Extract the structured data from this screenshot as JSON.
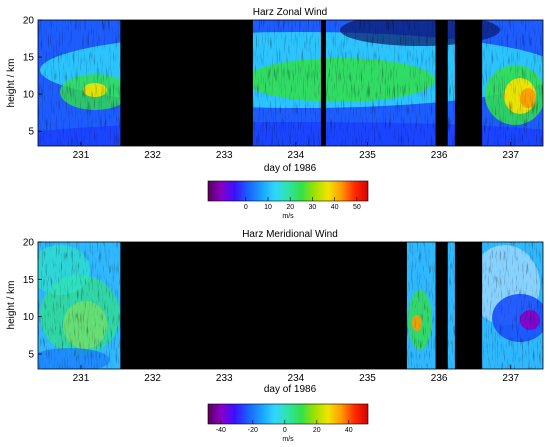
{
  "chart_data": [
    {
      "type": "heatmap",
      "title": "Harz Zonal Wind",
      "xlabel": "day of 1986",
      "ylabel": "height / km",
      "x_ticks": [
        "231",
        "232",
        "233",
        "234",
        "235",
        "236",
        "237"
      ],
      "y_ticks": [
        "5",
        "10",
        "15",
        "20"
      ],
      "xlim": [
        230.4,
        237.45
      ],
      "ylim": [
        3,
        20
      ],
      "no_data_intervals": [
        [
          231.55,
          233.4
        ],
        [
          234.35,
          234.42
        ],
        [
          235.95,
          236.12
        ],
        [
          236.22,
          236.6
        ]
      ],
      "colorbar": {
        "unit": "m/s",
        "range": [
          -17,
          55
        ],
        "ticks": [
          "0",
          "10",
          "20",
          "30",
          "40",
          "50"
        ],
        "tick_values": [
          0,
          10,
          20,
          30,
          40,
          50
        ]
      }
    },
    {
      "type": "heatmap",
      "title": "Harz Meridional Wind",
      "xlabel": "day of 1986",
      "ylabel": "height / km",
      "x_ticks": [
        "231",
        "232",
        "233",
        "234",
        "235",
        "236",
        "237"
      ],
      "y_ticks": [
        "5",
        "10",
        "15",
        "20"
      ],
      "xlim": [
        230.4,
        237.45
      ],
      "ylim": [
        3,
        20
      ],
      "no_data_intervals": [
        [
          231.55,
          235.55
        ],
        [
          235.95,
          236.12
        ],
        [
          236.22,
          236.6
        ]
      ],
      "colorbar": {
        "unit": "m/s",
        "range": [
          -48,
          52
        ],
        "ticks": [
          "-40",
          "-20",
          "0",
          "20",
          "40"
        ],
        "tick_values": [
          -40,
          -20,
          0,
          20,
          40
        ]
      }
    }
  ],
  "colors": {
    "no_data": "#000000",
    "colormap": [
      "#5a005a",
      "#8a00c8",
      "#3b10ff",
      "#1a60ff",
      "#1aa0ff",
      "#2fd6ff",
      "#2fe3a8",
      "#33e04a",
      "#a0e000",
      "#f2e400",
      "#ff9a00",
      "#ff2a00",
      "#d80000"
    ]
  }
}
